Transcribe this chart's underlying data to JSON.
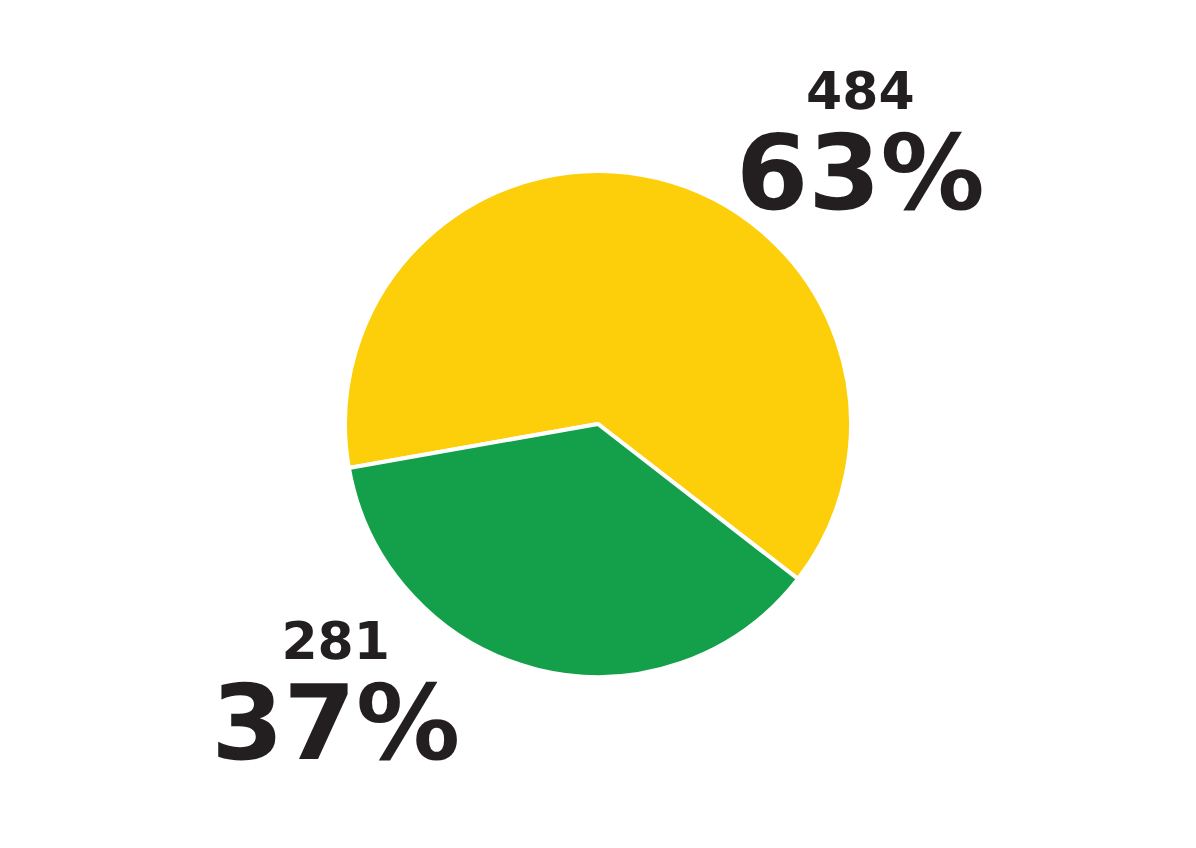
{
  "chart_data": {
    "type": "pie",
    "categories": [
      null,
      null
    ],
    "values": [
      484,
      281
    ],
    "colors": [
      "#fccf0a",
      "#14a04a"
    ],
    "value_labels": [
      "484\n63%",
      "281\n37%"
    ]
  }
}
